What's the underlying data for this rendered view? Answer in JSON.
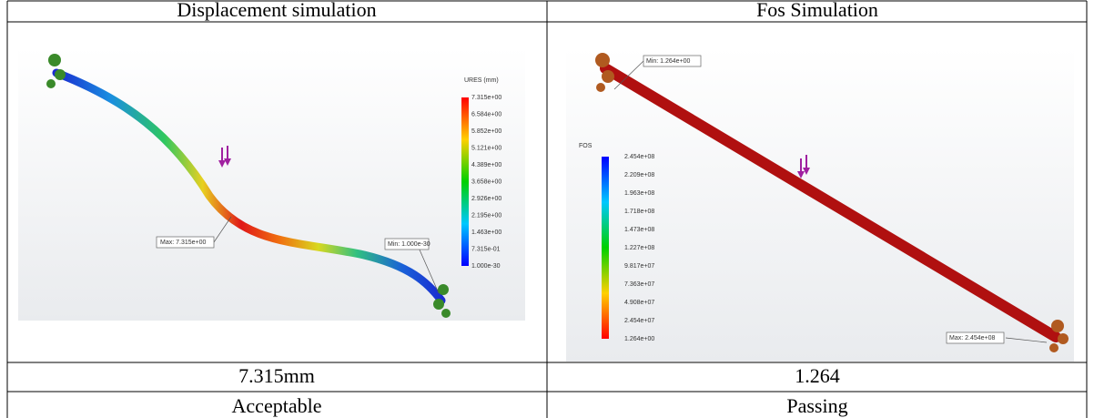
{
  "table": {
    "header": [
      "Displacement simulation",
      "Fos Simulation"
    ],
    "images": [
      {
        "legend_title": "URES (mm)",
        "legend_labels": [
          "7.315e+00",
          "6.584e+00",
          "5.852e+00",
          "5.121e+00",
          "4.389e+00",
          "3.658e+00",
          "2.926e+00",
          "2.195e+00",
          "1.463e+00",
          "7.315e-01",
          "1.000e-30"
        ],
        "max_label": "Max: 7.315e+00",
        "min_label": "Min: 1.000e-30"
      },
      {
        "legend_title": "FOS",
        "legend_labels": [
          "2.454e+08",
          "2.209e+08",
          "1.963e+08",
          "1.718e+08",
          "1.473e+08",
          "1.227e+08",
          "9.817e+07",
          "7.363e+07",
          "4.908e+07",
          "2.454e+07",
          "1.264e+00"
        ],
        "min_label": "Min: 1.264e+00",
        "max_label": "Max: 2.454e+08"
      }
    ],
    "rows": [
      [
        "7.315mm",
        "1.264"
      ],
      [
        "Acceptable",
        "Passing"
      ]
    ]
  }
}
